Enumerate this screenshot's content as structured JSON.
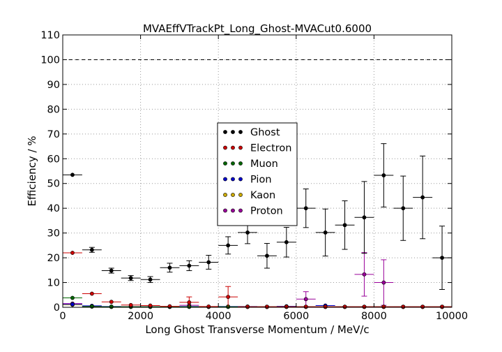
{
  "chart_data": {
    "type": "scatter",
    "title": "MVAEffVTrackPt_Long_Ghost-MVACut0.6000",
    "xlabel": "Long Ghost Transverse Momentum / MeV/c",
    "ylabel": "Efficiency / %",
    "xlim": [
      0,
      10000
    ],
    "ylim": [
      0,
      110
    ],
    "xticks": [
      "0",
      "2000",
      "4000",
      "6000",
      "8000",
      "10000"
    ],
    "yticks": [
      "0",
      "10",
      "20",
      "30",
      "40",
      "50",
      "60",
      "70",
      "80",
      "90",
      "100",
      "110"
    ],
    "grid": true,
    "reference_line": 100,
    "legend_position": "center",
    "x_bin_centers": [
      250,
      750,
      1250,
      1750,
      2250,
      2750,
      3250,
      3750,
      4250,
      4750,
      5250,
      5750,
      6250,
      6750,
      7250,
      7750,
      8250,
      8750,
      9250,
      9750
    ],
    "x_bin_half_width": 250,
    "series": [
      {
        "name": "Ghost",
        "color": "#000000",
        "values": [
          53.5,
          23.2,
          14.8,
          11.8,
          11.2,
          16.0,
          16.8,
          18.2,
          25.0,
          30.2,
          20.8,
          26.3,
          40.0,
          30.2,
          33.2,
          36.3,
          53.3,
          40.0,
          44.4,
          20.0
        ],
        "err": [
          0.8,
          1.0,
          1.0,
          1.0,
          1.2,
          1.8,
          2.0,
          2.8,
          3.5,
          4.5,
          5.0,
          6.0,
          7.8,
          9.5,
          9.8,
          14.5,
          12.8,
          13.0,
          16.7,
          12.8
        ]
      },
      {
        "name": "Electron",
        "color": "#cc0000",
        "values": [
          22.0,
          5.5,
          2.2,
          0.9,
          0.7,
          0.4,
          2.0,
          0.3,
          4.2,
          0.2,
          0.2,
          0.2,
          0.2,
          0.2,
          0.2,
          0.2,
          0.2,
          0.2,
          0.2,
          0.2
        ],
        "err": [
          0.8,
          0.8,
          0.6,
          0.4,
          0.4,
          0.4,
          2.2,
          0.4,
          4.2,
          0.3,
          0.2,
          0.2,
          0.2,
          0.2,
          0.2,
          0.2,
          0.2,
          0.2,
          0.2,
          0.2
        ]
      },
      {
        "name": "Muon",
        "color": "#006600",
        "values": [
          3.8,
          0.3,
          0.2,
          0.2,
          0.2,
          0.2,
          0.2,
          0.2,
          0.2,
          0.2,
          0.2,
          0.2,
          0.2,
          0.2,
          0.2,
          0.2,
          0.2,
          0.2,
          0.2,
          0.2
        ],
        "err": [
          0.5,
          0.2,
          0.1,
          0.1,
          0.1,
          0.1,
          0.1,
          0.1,
          0.1,
          0.1,
          0.1,
          0.1,
          0.1,
          0.1,
          0.1,
          0.1,
          0.1,
          0.1,
          0.1,
          0.1
        ]
      },
      {
        "name": "Pion",
        "color": "#0000cc",
        "values": [
          1.2,
          0.6,
          0.3,
          0.2,
          0.2,
          0.2,
          0.3,
          0.2,
          0.3,
          0.3,
          0.2,
          0.4,
          0.2,
          0.7,
          0.2,
          0.2,
          0.2,
          0.2,
          0.2,
          0.2
        ],
        "err": [
          0.3,
          0.2,
          0.2,
          0.1,
          0.1,
          0.1,
          0.2,
          0.1,
          0.3,
          0.3,
          0.2,
          0.4,
          0.2,
          0.6,
          0.2,
          0.2,
          0.2,
          0.2,
          0.2,
          0.2
        ]
      },
      {
        "name": "Kaon",
        "color": "#ccaa00",
        "values": [
          1.0,
          0.3,
          0.2,
          0.2,
          0.2,
          0.2,
          0.2,
          0.2,
          0.2,
          0.2,
          0.2,
          0.2,
          0.2,
          0.2,
          0.2,
          0.2,
          0.2,
          0.2,
          0.2,
          0.2
        ],
        "err": [
          0.3,
          0.2,
          0.1,
          0.1,
          0.1,
          0.1,
          0.1,
          0.1,
          0.1,
          0.1,
          0.1,
          0.1,
          0.1,
          0.1,
          0.1,
          0.1,
          0.1,
          0.1,
          0.1,
          0.1
        ]
      },
      {
        "name": "Proton",
        "color": "#990099",
        "values": [
          1.5,
          0.5,
          0.2,
          0.2,
          0.2,
          0.2,
          0.8,
          0.2,
          0.2,
          0.2,
          0.2,
          0.2,
          3.3,
          0.2,
          0.2,
          13.3,
          10.0,
          0.2,
          0.2,
          0.2
        ],
        "err": [
          0.3,
          0.3,
          0.1,
          0.1,
          0.1,
          0.1,
          0.8,
          0.1,
          0.2,
          0.1,
          0.1,
          0.1,
          3.0,
          0.1,
          0.1,
          8.8,
          9.2,
          0.1,
          0.1,
          0.1
        ]
      }
    ]
  }
}
